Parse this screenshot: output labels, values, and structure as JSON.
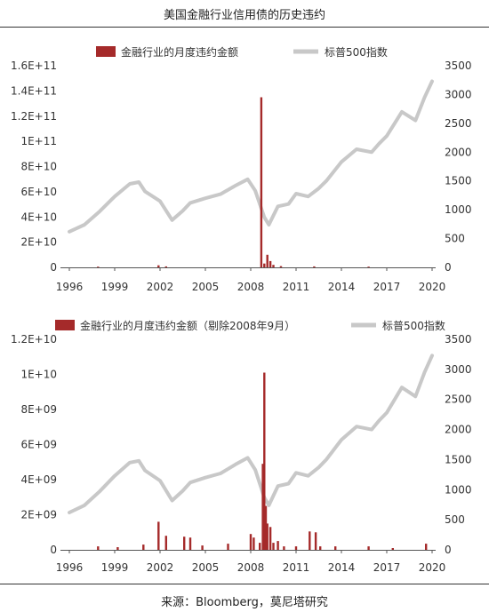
{
  "title": "美国金融行业信用债的历史违约",
  "source": "来源：Bloomberg，莫尼塔研究",
  "colors": {
    "bar": "#a52a2a",
    "line": "#c8c8c8",
    "axis": "#555555"
  },
  "chart_data": [
    {
      "type": "bar",
      "legend": [
        "金融行业的月度违约金额",
        "标普500指数"
      ],
      "x_ticks": [
        "1996",
        "1999",
        "2002",
        "2005",
        "2008",
        "2011",
        "2014",
        "2017",
        "2020"
      ],
      "x_range": [
        1996,
        2020
      ],
      "y_left_ticks": [
        "0",
        "2E+10",
        "4E+10",
        "6E+10",
        "8E+10",
        "1E+11",
        "1.2E+11",
        "1.4E+11",
        "1.6E+11"
      ],
      "y_left_range": [
        0,
        160000000000
      ],
      "y_right_ticks": [
        "0",
        "500",
        "1000",
        "1500",
        "2000",
        "2500",
        "3000",
        "3500"
      ],
      "y_right_range": [
        0,
        3500
      ],
      "series": [
        {
          "name": "金融行业的月度违约金额",
          "type": "bar",
          "axis": "left",
          "points": [
            [
              1997.9,
              200000000
            ],
            [
              2001.9,
              1600000000
            ],
            [
              2002.4,
              800000000
            ],
            [
              2008.7,
              135000000000
            ],
            [
              2008.9,
              3000000000
            ],
            [
              2009.1,
              10000000000
            ],
            [
              2009.3,
              5000000000
            ],
            [
              2009.5,
              2000000000
            ],
            [
              2010.0,
              1000000000
            ],
            [
              2012.2,
              800000000
            ],
            [
              2015.8,
              300000000
            ]
          ]
        },
        {
          "name": "标普500指数",
          "type": "line",
          "axis": "right",
          "points": [
            [
              1996.0,
              620
            ],
            [
              1997.0,
              740
            ],
            [
              1998.0,
              970
            ],
            [
              1999.0,
              1230
            ],
            [
              2000.0,
              1450
            ],
            [
              2000.6,
              1480
            ],
            [
              2001.0,
              1320
            ],
            [
              2002.0,
              1150
            ],
            [
              2002.8,
              820
            ],
            [
              2003.5,
              980
            ],
            [
              2004.0,
              1120
            ],
            [
              2005.0,
              1200
            ],
            [
              2006.0,
              1270
            ],
            [
              2007.0,
              1420
            ],
            [
              2007.8,
              1530
            ],
            [
              2008.3,
              1330
            ],
            [
              2008.9,
              870
            ],
            [
              2009.2,
              740
            ],
            [
              2009.8,
              1060
            ],
            [
              2010.5,
              1100
            ],
            [
              2011.0,
              1280
            ],
            [
              2011.8,
              1230
            ],
            [
              2012.5,
              1370
            ],
            [
              2013.0,
              1500
            ],
            [
              2014.0,
              1830
            ],
            [
              2015.0,
              2050
            ],
            [
              2016.0,
              2000
            ],
            [
              2016.5,
              2150
            ],
            [
              2017.0,
              2280
            ],
            [
              2018.0,
              2700
            ],
            [
              2018.9,
              2550
            ],
            [
              2019.5,
              2950
            ],
            [
              2020.0,
              3230
            ]
          ]
        }
      ]
    },
    {
      "type": "bar",
      "legend": [
        "金融行业的月度违约金额（剔除2008年9月）",
        "标普500指数"
      ],
      "x_ticks": [
        "1996",
        "1999",
        "2002",
        "2005",
        "2008",
        "2011",
        "2014",
        "2017",
        "2020"
      ],
      "x_range": [
        1996,
        2020
      ],
      "y_left_ticks": [
        "0",
        "2E+09",
        "4E+09",
        "6E+09",
        "8E+09",
        "1E+10",
        "1.2E+10"
      ],
      "y_left_range": [
        0,
        12000000000
      ],
      "y_right_ticks": [
        "0",
        "500",
        "1000",
        "1500",
        "2000",
        "2500",
        "3000",
        "3500"
      ],
      "y_right_range": [
        0,
        3500
      ],
      "series": [
        {
          "name": "金融行业的月度违约金额（剔除2008年9月）",
          "type": "bar",
          "axis": "left",
          "points": [
            [
              1997.9,
              200000000
            ],
            [
              1999.2,
              150000000
            ],
            [
              2000.9,
              300000000
            ],
            [
              2001.9,
              1600000000
            ],
            [
              2002.4,
              800000000
            ],
            [
              2003.6,
              750000000
            ],
            [
              2004.0,
              700000000
            ],
            [
              2004.8,
              250000000
            ],
            [
              2006.5,
              350000000
            ],
            [
              2008.0,
              900000000
            ],
            [
              2008.2,
              700000000
            ],
            [
              2008.6,
              400000000
            ],
            [
              2008.8,
              4900000000
            ],
            [
              2008.9,
              10100000000
            ],
            [
              2009.0,
              2500000000
            ],
            [
              2009.1,
              1500000000
            ],
            [
              2009.3,
              1300000000
            ],
            [
              2009.5,
              400000000
            ],
            [
              2009.8,
              500000000
            ],
            [
              2010.2,
              200000000
            ],
            [
              2011.0,
              200000000
            ],
            [
              2011.9,
              1050000000
            ],
            [
              2012.3,
              1000000000
            ],
            [
              2012.6,
              200000000
            ],
            [
              2013.6,
              200000000
            ],
            [
              2015.8,
              200000000
            ],
            [
              2017.4,
              100000000
            ],
            [
              2019.6,
              350000000
            ]
          ]
        },
        {
          "name": "标普500指数",
          "type": "line",
          "axis": "right",
          "points": [
            [
              1996.0,
              620
            ],
            [
              1997.0,
              740
            ],
            [
              1998.0,
              970
            ],
            [
              1999.0,
              1230
            ],
            [
              2000.0,
              1450
            ],
            [
              2000.6,
              1480
            ],
            [
              2001.0,
              1320
            ],
            [
              2002.0,
              1150
            ],
            [
              2002.8,
              820
            ],
            [
              2003.5,
              980
            ],
            [
              2004.0,
              1120
            ],
            [
              2005.0,
              1200
            ],
            [
              2006.0,
              1270
            ],
            [
              2007.0,
              1420
            ],
            [
              2007.8,
              1530
            ],
            [
              2008.3,
              1330
            ],
            [
              2008.9,
              870
            ],
            [
              2009.2,
              740
            ],
            [
              2009.8,
              1060
            ],
            [
              2010.5,
              1100
            ],
            [
              2011.0,
              1280
            ],
            [
              2011.8,
              1230
            ],
            [
              2012.5,
              1370
            ],
            [
              2013.0,
              1500
            ],
            [
              2014.0,
              1830
            ],
            [
              2015.0,
              2050
            ],
            [
              2016.0,
              2000
            ],
            [
              2016.5,
              2150
            ],
            [
              2017.0,
              2280
            ],
            [
              2018.0,
              2700
            ],
            [
              2018.9,
              2550
            ],
            [
              2019.5,
              2950
            ],
            [
              2020.0,
              3230
            ]
          ]
        }
      ]
    }
  ]
}
